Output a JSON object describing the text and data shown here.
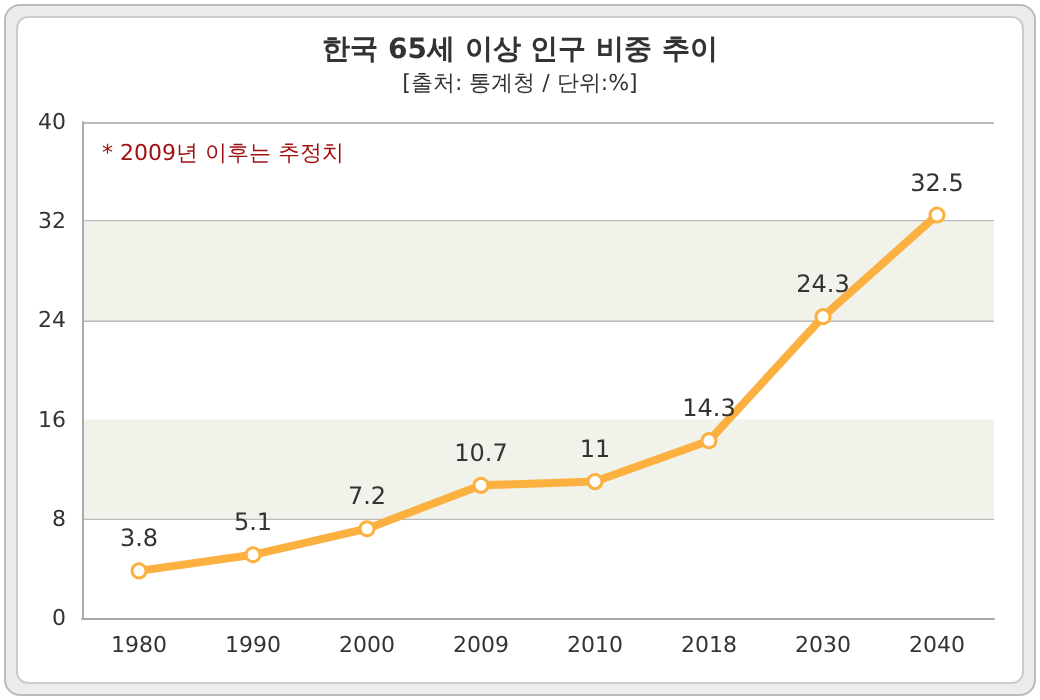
{
  "chart_data": {
    "type": "line",
    "title": "한국 65세 이상 인구 비중 추이",
    "subtitle": "[출처: 통계청 / 단위:%]",
    "annotations": [
      "* 2009년 이후는 추정치"
    ],
    "categories": [
      "1980",
      "1990",
      "2000",
      "2009",
      "2010",
      "2018",
      "2030",
      "2040"
    ],
    "series": [
      {
        "color": "#fbb040",
        "values": [
          3.8,
          5.1,
          7.2,
          10.7,
          11,
          14.3,
          24.3,
          32.5
        ]
      }
    ],
    "bands": [
      {
        "axis": "y",
        "from": 8,
        "to": 16,
        "color": "#f1f2e9"
      },
      {
        "axis": "y",
        "from": 24,
        "to": 32,
        "color": "#f1f2e9"
      }
    ],
    "ylim": [
      0,
      40
    ],
    "yticks": [
      0,
      8,
      16,
      24,
      32,
      40
    ],
    "grid": "y",
    "marker": "circle",
    "line_style": "solid",
    "data_labels": true
  }
}
